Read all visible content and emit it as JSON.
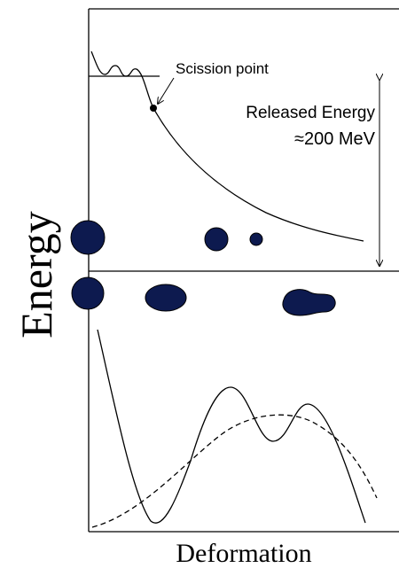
{
  "labels": {
    "scission_point": "Scission point",
    "released_energy": "Released Energy",
    "energy_value": "≈200 MeV",
    "y_axis": "Energy",
    "x_axis": "Deformation"
  }
}
